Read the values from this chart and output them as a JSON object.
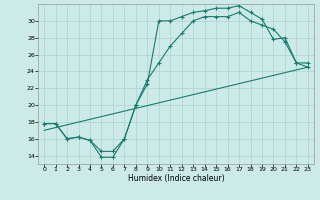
{
  "title": "",
  "xlabel": "Humidex (Indice chaleur)",
  "bg_color": "#cceae7",
  "grid_color": "#aad4d0",
  "line_color": "#1a7a6e",
  "xlim": [
    -0.5,
    23.5
  ],
  "ylim": [
    13,
    32
  ],
  "xticks": [
    0,
    1,
    2,
    3,
    4,
    5,
    6,
    7,
    8,
    9,
    10,
    11,
    12,
    13,
    14,
    15,
    16,
    17,
    18,
    19,
    20,
    21,
    22,
    23
  ],
  "yticks": [
    14,
    16,
    18,
    20,
    22,
    24,
    26,
    28,
    30
  ],
  "line1_x": [
    0,
    1,
    2,
    3,
    4,
    5,
    6,
    7,
    8,
    9,
    10,
    11,
    12,
    13,
    14,
    15,
    16,
    17,
    18,
    19,
    20,
    21,
    22,
    23
  ],
  "line1_y": [
    17.8,
    17.8,
    16.0,
    16.2,
    15.8,
    13.8,
    13.8,
    16.0,
    20.0,
    22.5,
    30.0,
    30.0,
    30.5,
    31.0,
    31.2,
    31.5,
    31.5,
    31.8,
    31.0,
    30.2,
    27.8,
    28.0,
    25.0,
    25.0
  ],
  "line2_x": [
    0,
    1,
    2,
    3,
    4,
    5,
    6,
    7,
    8,
    9,
    10,
    11,
    12,
    13,
    14,
    15,
    16,
    17,
    18,
    19,
    20,
    21,
    22,
    23
  ],
  "line2_y": [
    17.8,
    17.8,
    16.0,
    16.2,
    15.8,
    14.5,
    14.5,
    16.0,
    20.0,
    23.0,
    25.0,
    27.0,
    28.5,
    30.0,
    30.5,
    30.5,
    30.5,
    31.0,
    30.0,
    29.5,
    29.0,
    27.5,
    25.0,
    24.5
  ],
  "line3_x": [
    0,
    23
  ],
  "line3_y": [
    17.0,
    24.5
  ]
}
